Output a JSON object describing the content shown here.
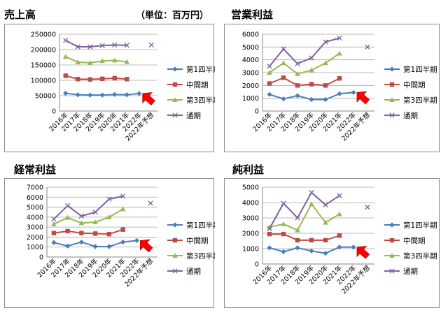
{
  "headings": {
    "sales": "売上高",
    "sales_unit": "（単位：百万円）",
    "operating": "営業利益",
    "ordinary": "経常利益",
    "net": "純利益"
  },
  "colors": {
    "q1": "#4a7ebb",
    "half": "#be4b48",
    "q3": "#98b954",
    "full": "#7d60a0",
    "arrow": "#ff0000",
    "grid": "#a6a6a6"
  },
  "chart_data": [
    {
      "id": "sales",
      "type": "line",
      "title": "売上高",
      "x": [
        "2016年",
        "2017年",
        "2018年",
        "2019年",
        "2020年",
        "2021年",
        "2022年",
        "2022年予想"
      ],
      "ylim": [
        0,
        250000
      ],
      "yticks": [
        0,
        50000,
        100000,
        150000,
        200000,
        250000
      ],
      "legend_position": "right",
      "series": [
        {
          "name": "第1四半期",
          "key": "q1",
          "marker": "diamond",
          "values": [
            58000,
            53000,
            52000,
            52000,
            54000,
            53000,
            57000,
            null
          ]
        },
        {
          "name": "中間期",
          "key": "half",
          "marker": "square",
          "values": [
            115000,
            104000,
            103000,
            105000,
            107000,
            104000,
            null,
            null
          ]
        },
        {
          "name": "第3四半期",
          "key": "q3",
          "marker": "triangle",
          "values": [
            177000,
            159000,
            157000,
            163000,
            165000,
            160000,
            null,
            null
          ]
        },
        {
          "name": "通期",
          "key": "full",
          "marker": "x",
          "values": [
            230000,
            209000,
            209000,
            213000,
            215000,
            214000,
            null,
            215000
          ]
        }
      ],
      "arrow_at_index": 6
    },
    {
      "id": "operating",
      "type": "line",
      "title": "営業利益",
      "x": [
        "2016年",
        "2017年",
        "2018年",
        "2019年",
        "2020年",
        "2021年",
        "2022年",
        "2022年予想"
      ],
      "ylim": [
        0,
        6000
      ],
      "yticks": [
        0,
        1000,
        2000,
        3000,
        4000,
        5000,
        6000
      ],
      "legend_position": "right",
      "series": [
        {
          "name": "第1四半期",
          "key": "q1",
          "marker": "diamond",
          "values": [
            1300,
            950,
            1200,
            900,
            900,
            1350,
            1450,
            null
          ]
        },
        {
          "name": "中間期",
          "key": "half",
          "marker": "square",
          "values": [
            2150,
            2600,
            2000,
            2100,
            2000,
            2550,
            null,
            null
          ]
        },
        {
          "name": "第3四半期",
          "key": "q3",
          "marker": "triangle",
          "values": [
            3000,
            3750,
            2900,
            3200,
            3750,
            4500,
            null,
            null
          ]
        },
        {
          "name": "通期",
          "key": "full",
          "marker": "x",
          "values": [
            3500,
            4850,
            3700,
            4150,
            5400,
            5700,
            null,
            5000
          ]
        }
      ],
      "arrow_at_index": 6
    },
    {
      "id": "ordinary",
      "type": "line",
      "title": "経常利益",
      "x": [
        "2016年",
        "2017年",
        "2018年",
        "2019年",
        "2020年",
        "2021年",
        "2022年",
        "2022年予想"
      ],
      "ylim": [
        0,
        7000
      ],
      "yticks": [
        0,
        1000,
        2000,
        3000,
        4000,
        5000,
        6000,
        7000
      ],
      "legend_position": "right",
      "series": [
        {
          "name": "第1四半期",
          "key": "q1",
          "marker": "diamond",
          "values": [
            1450,
            1100,
            1500,
            1050,
            1050,
            1500,
            1650,
            null
          ]
        },
        {
          "name": "中間期",
          "key": "half",
          "marker": "square",
          "values": [
            2400,
            2600,
            2400,
            2350,
            2300,
            2750,
            null,
            null
          ]
        },
        {
          "name": "第3四半期",
          "key": "q3",
          "marker": "triangle",
          "values": [
            3300,
            3950,
            3400,
            3500,
            4000,
            4800,
            null,
            null
          ]
        },
        {
          "name": "通期",
          "key": "full",
          "marker": "x",
          "values": [
            3800,
            5150,
            4100,
            4500,
            5800,
            6100,
            null,
            5400
          ]
        }
      ],
      "arrow_at_index": 6
    },
    {
      "id": "net",
      "type": "line",
      "title": "純利益",
      "x": [
        "2016年",
        "2017年",
        "2018年",
        "2019年",
        "2020年",
        "2021年",
        "2022年",
        "2022年予想"
      ],
      "ylim": [
        0,
        5000
      ],
      "yticks": [
        0,
        1000,
        2000,
        3000,
        4000,
        5000
      ],
      "legend_position": "right",
      "series": [
        {
          "name": "第1四半期",
          "key": "q1",
          "marker": "diamond",
          "values": [
            1050,
            800,
            1050,
            850,
            700,
            1100,
            1100,
            null
          ]
        },
        {
          "name": "中間期",
          "key": "half",
          "marker": "square",
          "values": [
            1950,
            1950,
            1550,
            1550,
            1550,
            1850,
            null,
            null
          ]
        },
        {
          "name": "第3四半期",
          "key": "q3",
          "marker": "triangle",
          "values": [
            2400,
            2600,
            2200,
            3900,
            2700,
            3250,
            null,
            null
          ]
        },
        {
          "name": "通期",
          "key": "full",
          "marker": "x",
          "values": [
            2300,
            3950,
            3000,
            4650,
            3850,
            4450,
            null,
            3700
          ]
        }
      ],
      "arrow_at_index": 6
    }
  ]
}
